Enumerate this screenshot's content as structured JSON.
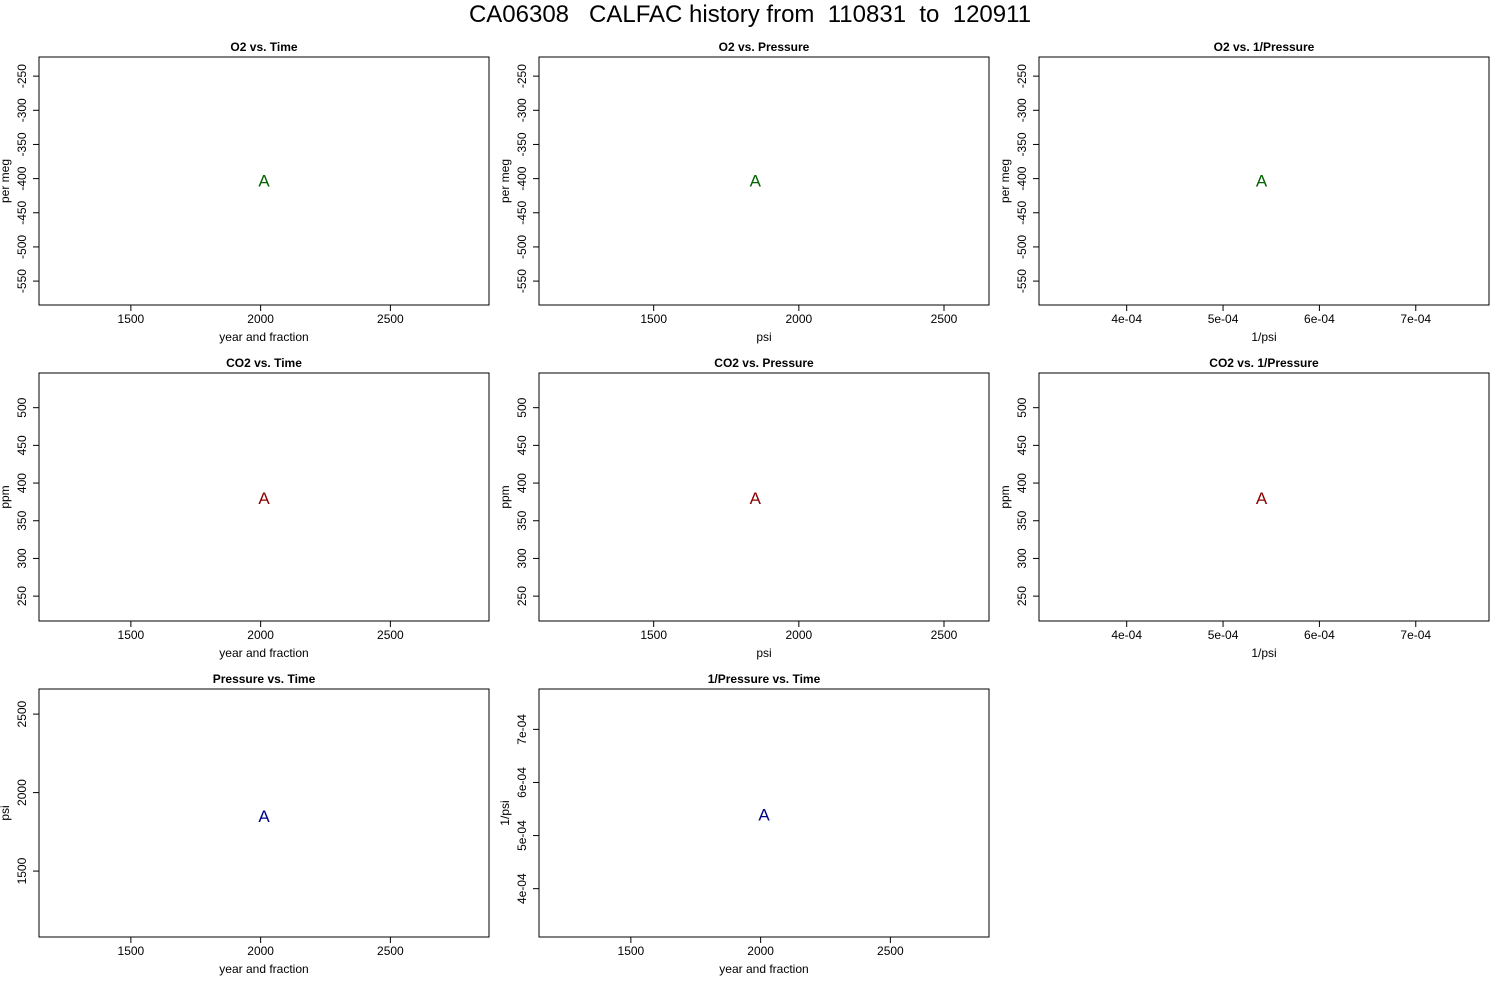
{
  "title": "CA06308   CALFAC history from  110831  to  120911",
  "chart_data": [
    {
      "type": "scatter",
      "title": "O2 vs. Time",
      "xlabel": "year and fraction",
      "ylabel": "per meg",
      "xlim": [
        1146,
        2880
      ],
      "ylim": [
        -585,
        -222
      ],
      "xticks": [
        1500,
        2000,
        2500
      ],
      "xticklabels": [
        "1500",
        "2000",
        "2500"
      ],
      "yticks": [
        -250,
        -300,
        -350,
        -400,
        -450,
        -500,
        -550
      ],
      "yticklabels": [
        "-250",
        "-300",
        "-350",
        "-400",
        "-450",
        "-500",
        "-550"
      ],
      "ytick_rotated": true,
      "points": [
        {
          "x": 2013,
          "y": -403,
          "label": "A"
        }
      ],
      "color": "#006400"
    },
    {
      "type": "scatter",
      "title": "O2 vs. Pressure",
      "xlabel": "psi",
      "ylabel": "per meg",
      "xlim": [
        1105,
        2655
      ],
      "ylim": [
        -585,
        -222
      ],
      "xticks": [
        1500,
        2000,
        2500
      ],
      "xticklabels": [
        "1500",
        "2000",
        "2500"
      ],
      "yticks": [
        -250,
        -300,
        -350,
        -400,
        -450,
        -500,
        -550
      ],
      "yticklabels": [
        "-250",
        "-300",
        "-350",
        "-400",
        "-450",
        "-500",
        "-550"
      ],
      "ytick_rotated": true,
      "points": [
        {
          "x": 1850,
          "y": -403,
          "label": "A"
        }
      ],
      "color": "#006400"
    },
    {
      "type": "scatter",
      "title": "O2 vs. 1/Pressure",
      "xlabel": "1/psi",
      "ylabel": "per meg",
      "xlim": [
        0.000309,
        0.000776
      ],
      "ylim": [
        -585,
        -222
      ],
      "xticks": [
        0.0004,
        0.0005,
        0.0006,
        0.0007
      ],
      "xticklabels": [
        "4e-04",
        "5e-04",
        "6e-04",
        "7e-04"
      ],
      "yticks": [
        -250,
        -300,
        -350,
        -400,
        -450,
        -500,
        -550
      ],
      "yticklabels": [
        "-250",
        "-300",
        "-350",
        "-400",
        "-450",
        "-500",
        "-550"
      ],
      "ytick_rotated": true,
      "points": [
        {
          "x": 0.00054,
          "y": -403,
          "label": "A"
        }
      ],
      "color": "#006400"
    },
    {
      "type": "scatter",
      "title": "CO2 vs. Time",
      "xlabel": "year and fraction",
      "ylabel": "ppm",
      "xlim": [
        1146,
        2880
      ],
      "ylim": [
        217,
        546
      ],
      "xticks": [
        1500,
        2000,
        2500
      ],
      "xticklabels": [
        "1500",
        "2000",
        "2500"
      ],
      "yticks": [
        250,
        300,
        350,
        400,
        450,
        500
      ],
      "yticklabels": [
        "250",
        "300",
        "350",
        "400",
        "450",
        "500"
      ],
      "ytick_rotated": true,
      "points": [
        {
          "x": 2013,
          "y": 380,
          "label": "A"
        }
      ],
      "color": "#8b0000"
    },
    {
      "type": "scatter",
      "title": "CO2 vs. Pressure",
      "xlabel": "psi",
      "ylabel": "ppm",
      "xlim": [
        1105,
        2655
      ],
      "ylim": [
        217,
        546
      ],
      "xticks": [
        1500,
        2000,
        2500
      ],
      "xticklabels": [
        "1500",
        "2000",
        "2500"
      ],
      "yticks": [
        250,
        300,
        350,
        400,
        450,
        500
      ],
      "yticklabels": [
        "250",
        "300",
        "350",
        "400",
        "450",
        "500"
      ],
      "ytick_rotated": true,
      "points": [
        {
          "x": 1850,
          "y": 380,
          "label": "A"
        }
      ],
      "color": "#8b0000"
    },
    {
      "type": "scatter",
      "title": "CO2 vs. 1/Pressure",
      "xlabel": "1/psi",
      "ylabel": "ppm",
      "xlim": [
        0.000309,
        0.000776
      ],
      "ylim": [
        217,
        546
      ],
      "xticks": [
        0.0004,
        0.0005,
        0.0006,
        0.0007
      ],
      "xticklabels": [
        "4e-04",
        "5e-04",
        "6e-04",
        "7e-04"
      ],
      "yticks": [
        250,
        300,
        350,
        400,
        450,
        500
      ],
      "yticklabels": [
        "250",
        "300",
        "350",
        "400",
        "450",
        "500"
      ],
      "ytick_rotated": true,
      "points": [
        {
          "x": 0.00054,
          "y": 380,
          "label": "A"
        }
      ],
      "color": "#8b0000"
    },
    {
      "type": "scatter",
      "title": "Pressure vs. Time",
      "xlabel": "year and fraction",
      "ylabel": "psi",
      "xlim": [
        1146,
        2880
      ],
      "ylim": [
        1080,
        2660
      ],
      "xticks": [
        1500,
        2000,
        2500
      ],
      "xticklabels": [
        "1500",
        "2000",
        "2500"
      ],
      "yticks": [
        1500,
        2000,
        2500
      ],
      "yticklabels": [
        "1500",
        "2000",
        "2500"
      ],
      "ytick_rotated": true,
      "points": [
        {
          "x": 2013,
          "y": 1850,
          "label": "A"
        }
      ],
      "color": "#00008b"
    },
    {
      "type": "scatter",
      "title": "1/Pressure vs. Time",
      "xlabel": "year and fraction",
      "ylabel": "1/psi",
      "xlim": [
        1146,
        2880
      ],
      "ylim": [
        0.000309,
        0.000776
      ],
      "xticks": [
        1500,
        2000,
        2500
      ],
      "xticklabels": [
        "1500",
        "2000",
        "2500"
      ],
      "yticks": [
        0.0004,
        0.0005,
        0.0006,
        0.0007
      ],
      "yticklabels": [
        "4e-04",
        "5e-04",
        "6e-04",
        "7e-04"
      ],
      "ytick_rotated": true,
      "points": [
        {
          "x": 2013,
          "y": 0.00054,
          "label": "A"
        }
      ],
      "color": "#00008b"
    }
  ]
}
